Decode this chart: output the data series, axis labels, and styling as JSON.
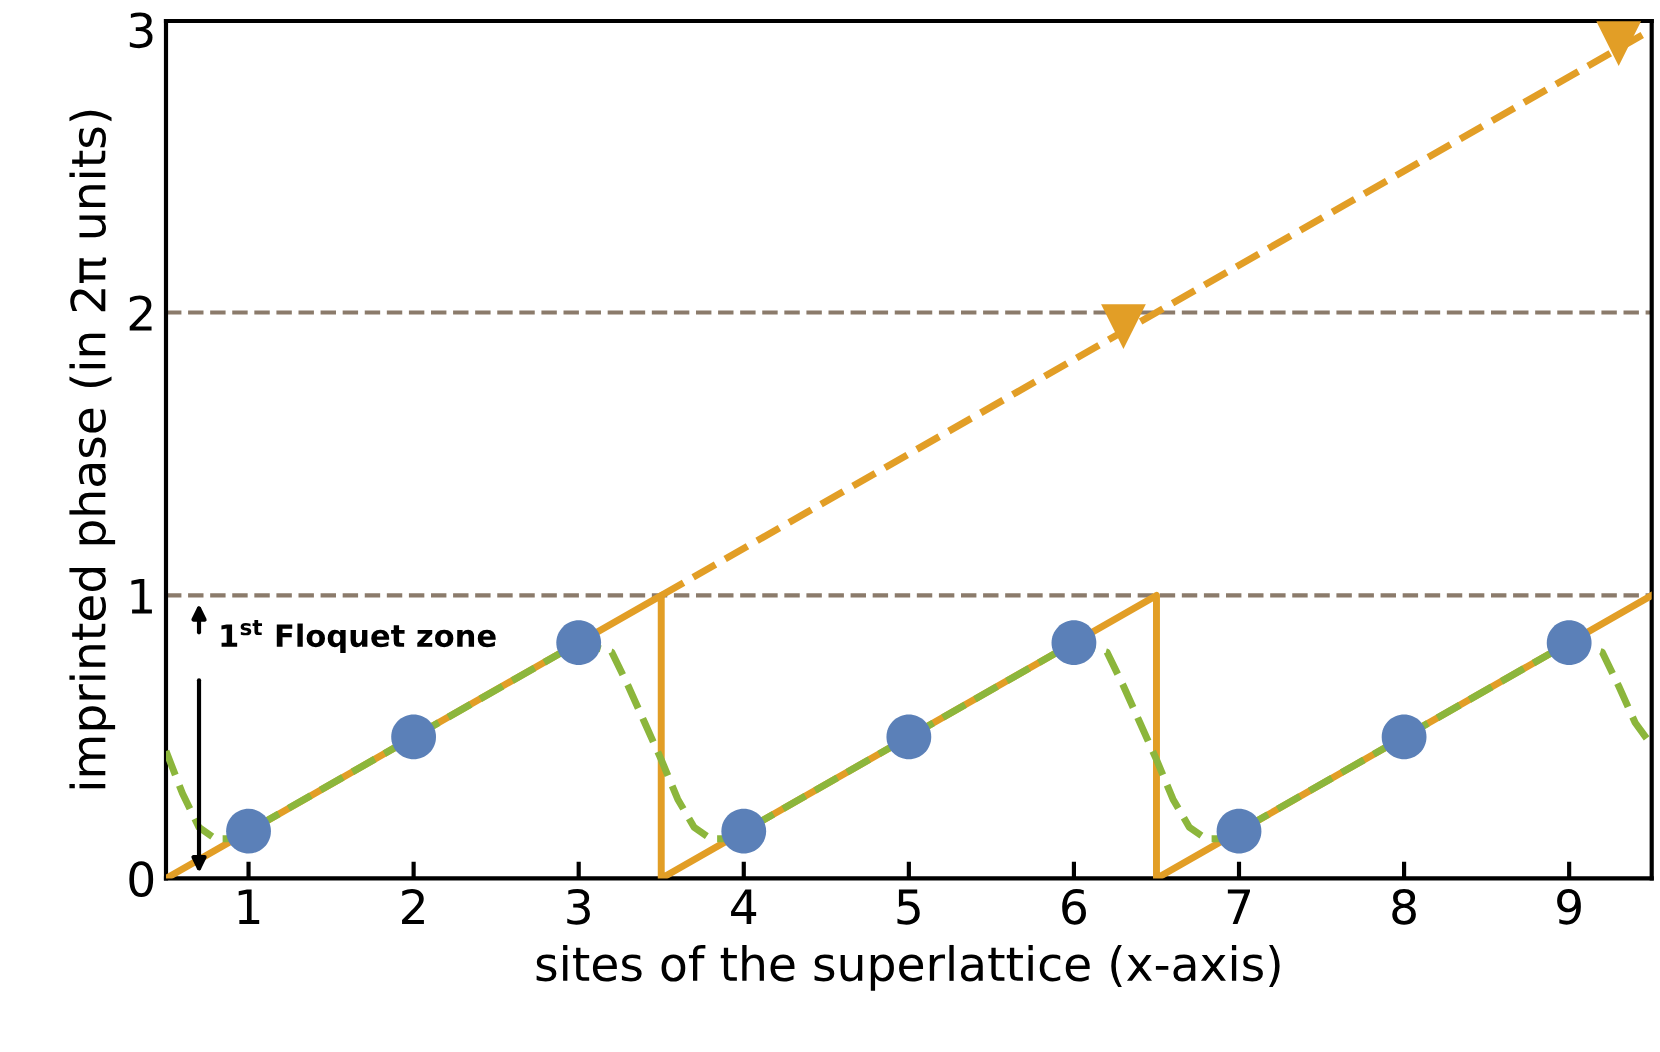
{
  "chart_data": {
    "type": "line",
    "xlabel": "sites of the superlattice (x-axis)",
    "ylabel": "imprinted phase (in 2π units)",
    "xlim": [
      0.5,
      9.5
    ],
    "ylim": [
      0,
      3.03
    ],
    "xticks": [
      1,
      2,
      3,
      4,
      5,
      6,
      7,
      8,
      9
    ],
    "yticks": [
      0,
      1,
      2,
      3
    ],
    "grid": false,
    "legend": false,
    "ref_lines": [
      {
        "axis": "y",
        "value": 1,
        "color": "#8b7b6b",
        "line_style": "dashed"
      },
      {
        "axis": "y",
        "value": 2,
        "color": "#8b7b6b",
        "line_style": "dashed"
      }
    ],
    "annotations": [
      "1$^{st}$ Floquet zone"
    ],
    "series": [
      {
        "color": "#e29e26",
        "line_style": "solid",
        "marker": "none",
        "x": [
          0.5,
          3.5,
          3.5,
          6.5,
          6.5,
          9.5
        ],
        "values": [
          0,
          1,
          0,
          1,
          0,
          1
        ]
      },
      {
        "color": "#e29e26",
        "line_style": "dashed",
        "marker": "none",
        "x": [
          3.5,
          9.5
        ],
        "values": [
          1,
          3
        ]
      },
      {
        "type": "scatter",
        "color": "#e29e26",
        "marker": "triangle",
        "x": [
          6.3,
          9.3
        ],
        "values": [
          1.95,
          2.95
        ]
      },
      {
        "color": "#8cb63c",
        "line_style": "dashed",
        "marker": "none",
        "x": [
          0.5,
          0.6,
          0.7,
          0.8,
          0.9,
          1.0,
          2.0,
          3.0,
          3.2,
          3.3,
          3.4,
          3.5,
          3.6,
          3.7,
          3.8,
          3.9,
          4.0,
          5.0,
          6.0,
          6.2,
          6.3,
          6.4,
          6.5,
          6.6,
          6.7,
          6.8,
          6.9,
          7.0,
          8.0,
          9.0,
          9.2,
          9.3,
          9.4,
          9.5
        ],
        "values": [
          0.45,
          0.3,
          0.18,
          0.14,
          0.14,
          0.167,
          0.5,
          0.833,
          0.8,
          0.68,
          0.55,
          0.42,
          0.28,
          0.18,
          0.14,
          0.14,
          0.167,
          0.5,
          0.833,
          0.8,
          0.68,
          0.55,
          0.42,
          0.28,
          0.18,
          0.14,
          0.14,
          0.167,
          0.5,
          0.833,
          0.8,
          0.68,
          0.55,
          0.47
        ]
      },
      {
        "type": "scatter",
        "color": "#5b80b8",
        "marker": "circle",
        "x": [
          1,
          2,
          3,
          4,
          5,
          6,
          7,
          8,
          9
        ],
        "values": [
          0.167,
          0.5,
          0.833,
          0.167,
          0.5,
          0.833,
          0.167,
          0.5,
          0.833
        ]
      }
    ]
  }
}
